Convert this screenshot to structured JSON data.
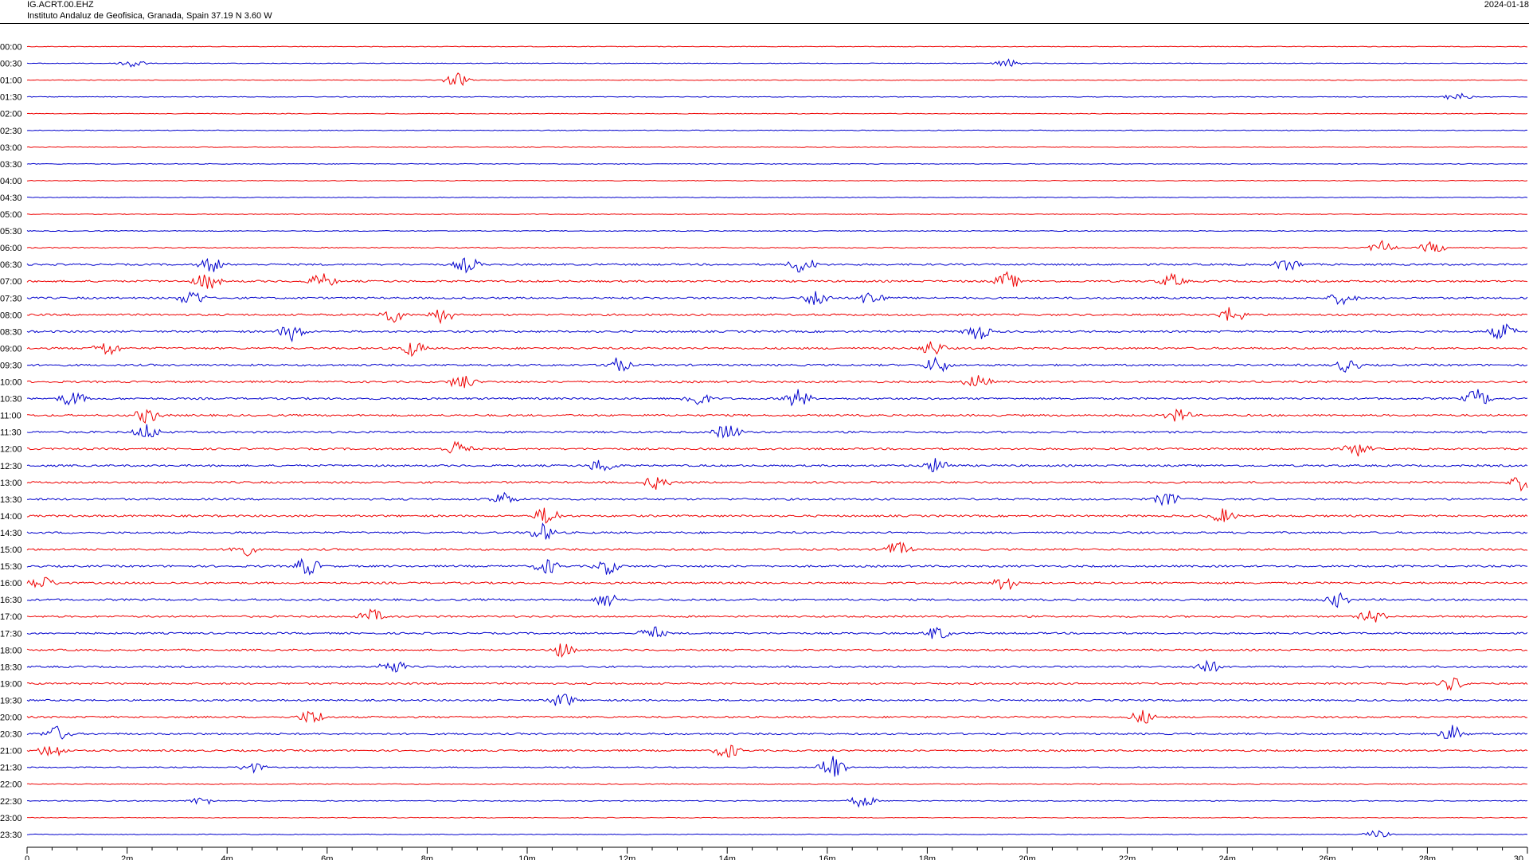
{
  "header": {
    "station": "IG.ACRT.00.EHZ",
    "location": "Instituto Andaluz de Geofisica, Granada, Spain  37.19 N 3.60 W",
    "date": "2024-01-18"
  },
  "chart_data": {
    "type": "line",
    "title": "IG.ACRT.00.EHZ",
    "subtitle": "Instituto Andaluz de Geofisica, Granada, Spain  37.19 N 3.60 W",
    "xlabel": "",
    "ylabel": "",
    "x_unit": "minutes",
    "xlim": [
      0,
      30
    ],
    "x_ticks": [
      "0",
      "2m",
      "4m",
      "6m",
      "8m",
      "10m",
      "12m",
      "14m",
      "16m",
      "18m",
      "20m",
      "22m",
      "24m",
      "26m",
      "28m",
      "30"
    ],
    "row_labels": [
      "00:00",
      "00:30",
      "01:00",
      "01:30",
      "02:00",
      "02:30",
      "03:00",
      "03:30",
      "04:00",
      "04:30",
      "05:00",
      "05:30",
      "06:00",
      "06:30",
      "07:00",
      "07:30",
      "08:00",
      "08:30",
      "09:00",
      "09:30",
      "10:00",
      "10:30",
      "11:00",
      "11:30",
      "12:00",
      "12:30",
      "13:00",
      "13:30",
      "14:00",
      "14:30",
      "15:00",
      "15:30",
      "16:00",
      "16:30",
      "17:00",
      "17:30",
      "18:00",
      "18:30",
      "19:00",
      "19:30",
      "20:00",
      "20:30",
      "21:00",
      "21:30",
      "22:00",
      "22:30",
      "23:00",
      "23:30"
    ],
    "colors": [
      "#ee0000",
      "#0000cc"
    ],
    "grid": false,
    "legend": "none",
    "activity_by_row": [
      0.2,
      0.2,
      0.2,
      0.2,
      0.2,
      0.2,
      0.2,
      0.2,
      0.2,
      0.2,
      0.2,
      0.25,
      0.3,
      0.5,
      0.55,
      0.55,
      0.55,
      0.55,
      0.55,
      0.55,
      0.55,
      0.55,
      0.55,
      0.55,
      0.55,
      0.55,
      0.55,
      0.55,
      0.55,
      0.55,
      0.55,
      0.55,
      0.55,
      0.55,
      0.5,
      0.5,
      0.5,
      0.5,
      0.5,
      0.5,
      0.5,
      0.5,
      0.5,
      0.3,
      0.25,
      0.25,
      0.2,
      0.2
    ],
    "events": [
      {
        "row": 1,
        "x": 2.1,
        "amp": 1.2
      },
      {
        "row": 1,
        "x": 19.6,
        "amp": 1.0
      },
      {
        "row": 2,
        "x": 8.6,
        "amp": 1.6
      },
      {
        "row": 3,
        "x": 28.6,
        "amp": 1.0
      },
      {
        "row": 12,
        "x": 27.1,
        "amp": 1.5
      },
      {
        "row": 12,
        "x": 28.1,
        "amp": 1.4
      },
      {
        "row": 13,
        "x": 3.7,
        "amp": 1.8
      },
      {
        "row": 13,
        "x": 8.8,
        "amp": 1.8
      },
      {
        "row": 13,
        "x": 15.5,
        "amp": 2.2
      },
      {
        "row": 13,
        "x": 25.2,
        "amp": 1.6
      },
      {
        "row": 14,
        "x": 3.6,
        "amp": 2.0
      },
      {
        "row": 14,
        "x": 5.9,
        "amp": 1.8
      },
      {
        "row": 14,
        "x": 19.6,
        "amp": 2.0
      },
      {
        "row": 14,
        "x": 22.9,
        "amp": 1.6
      },
      {
        "row": 15,
        "x": 3.3,
        "amp": 2.0
      },
      {
        "row": 15,
        "x": 15.8,
        "amp": 2.0
      },
      {
        "row": 15,
        "x": 16.9,
        "amp": 2.0
      },
      {
        "row": 15,
        "x": 26.3,
        "amp": 1.6
      },
      {
        "row": 16,
        "x": 7.3,
        "amp": 1.8
      },
      {
        "row": 16,
        "x": 8.3,
        "amp": 1.8
      },
      {
        "row": 16,
        "x": 24.1,
        "amp": 2.0
      },
      {
        "row": 17,
        "x": 5.3,
        "amp": 2.0
      },
      {
        "row": 17,
        "x": 19.0,
        "amp": 2.0
      },
      {
        "row": 17,
        "x": 29.5,
        "amp": 2.0
      },
      {
        "row": 18,
        "x": 1.6,
        "amp": 1.8
      },
      {
        "row": 18,
        "x": 7.7,
        "amp": 1.8
      },
      {
        "row": 18,
        "x": 18.1,
        "amp": 1.8
      },
      {
        "row": 19,
        "x": 11.8,
        "amp": 1.8
      },
      {
        "row": 19,
        "x": 18.2,
        "amp": 2.0
      },
      {
        "row": 19,
        "x": 26.4,
        "amp": 1.6
      },
      {
        "row": 20,
        "x": 8.7,
        "amp": 1.8
      },
      {
        "row": 20,
        "x": 19.0,
        "amp": 1.6
      },
      {
        "row": 21,
        "x": 0.9,
        "amp": 1.8
      },
      {
        "row": 21,
        "x": 13.4,
        "amp": 1.8
      },
      {
        "row": 21,
        "x": 15.4,
        "amp": 2.2
      },
      {
        "row": 21,
        "x": 29.0,
        "amp": 2.2
      },
      {
        "row": 22,
        "x": 2.4,
        "amp": 1.8
      },
      {
        "row": 22,
        "x": 23.0,
        "amp": 1.6
      },
      {
        "row": 23,
        "x": 2.4,
        "amp": 1.8
      },
      {
        "row": 23,
        "x": 14.0,
        "amp": 2.0
      },
      {
        "row": 24,
        "x": 8.6,
        "amp": 1.8
      },
      {
        "row": 24,
        "x": 26.6,
        "amp": 1.6
      },
      {
        "row": 25,
        "x": 11.5,
        "amp": 1.8
      },
      {
        "row": 25,
        "x": 18.2,
        "amp": 1.8
      },
      {
        "row": 26,
        "x": 12.6,
        "amp": 1.6
      },
      {
        "row": 26,
        "x": 29.9,
        "amp": 1.8
      },
      {
        "row": 27,
        "x": 9.5,
        "amp": 1.6
      },
      {
        "row": 27,
        "x": 22.8,
        "amp": 1.6
      },
      {
        "row": 28,
        "x": 10.4,
        "amp": 2.2
      },
      {
        "row": 28,
        "x": 23.9,
        "amp": 1.6
      },
      {
        "row": 29,
        "x": 10.3,
        "amp": 2.0
      },
      {
        "row": 30,
        "x": 4.3,
        "amp": 1.8
      },
      {
        "row": 30,
        "x": 17.4,
        "amp": 1.8
      },
      {
        "row": 31,
        "x": 5.6,
        "amp": 2.2
      },
      {
        "row": 31,
        "x": 10.4,
        "amp": 1.8
      },
      {
        "row": 31,
        "x": 11.6,
        "amp": 1.8
      },
      {
        "row": 32,
        "x": 0.3,
        "amp": 1.6
      },
      {
        "row": 32,
        "x": 19.6,
        "amp": 2.0
      },
      {
        "row": 33,
        "x": 11.6,
        "amp": 1.8
      },
      {
        "row": 33,
        "x": 26.2,
        "amp": 1.6
      },
      {
        "row": 34,
        "x": 6.9,
        "amp": 1.6
      },
      {
        "row": 34,
        "x": 26.9,
        "amp": 1.6
      },
      {
        "row": 35,
        "x": 12.5,
        "amp": 1.6
      },
      {
        "row": 35,
        "x": 18.2,
        "amp": 1.6
      },
      {
        "row": 36,
        "x": 10.7,
        "amp": 1.6
      },
      {
        "row": 37,
        "x": 7.3,
        "amp": 1.8
      },
      {
        "row": 37,
        "x": 23.6,
        "amp": 1.6
      },
      {
        "row": 38,
        "x": 28.5,
        "amp": 1.6
      },
      {
        "row": 39,
        "x": 10.7,
        "amp": 1.8
      },
      {
        "row": 40,
        "x": 5.7,
        "amp": 1.8
      },
      {
        "row": 40,
        "x": 22.3,
        "amp": 1.6
      },
      {
        "row": 41,
        "x": 0.6,
        "amp": 1.8
      },
      {
        "row": 41,
        "x": 28.5,
        "amp": 1.8
      },
      {
        "row": 42,
        "x": 0.5,
        "amp": 1.8
      },
      {
        "row": 42,
        "x": 14.0,
        "amp": 1.8
      },
      {
        "row": 43,
        "x": 16.1,
        "amp": 3.2
      },
      {
        "row": 43,
        "x": 4.5,
        "amp": 1.2
      },
      {
        "row": 45,
        "x": 16.7,
        "amp": 1.6
      },
      {
        "row": 45,
        "x": 3.5,
        "amp": 1.0
      },
      {
        "row": 47,
        "x": 27.0,
        "amp": 1.0
      }
    ]
  }
}
